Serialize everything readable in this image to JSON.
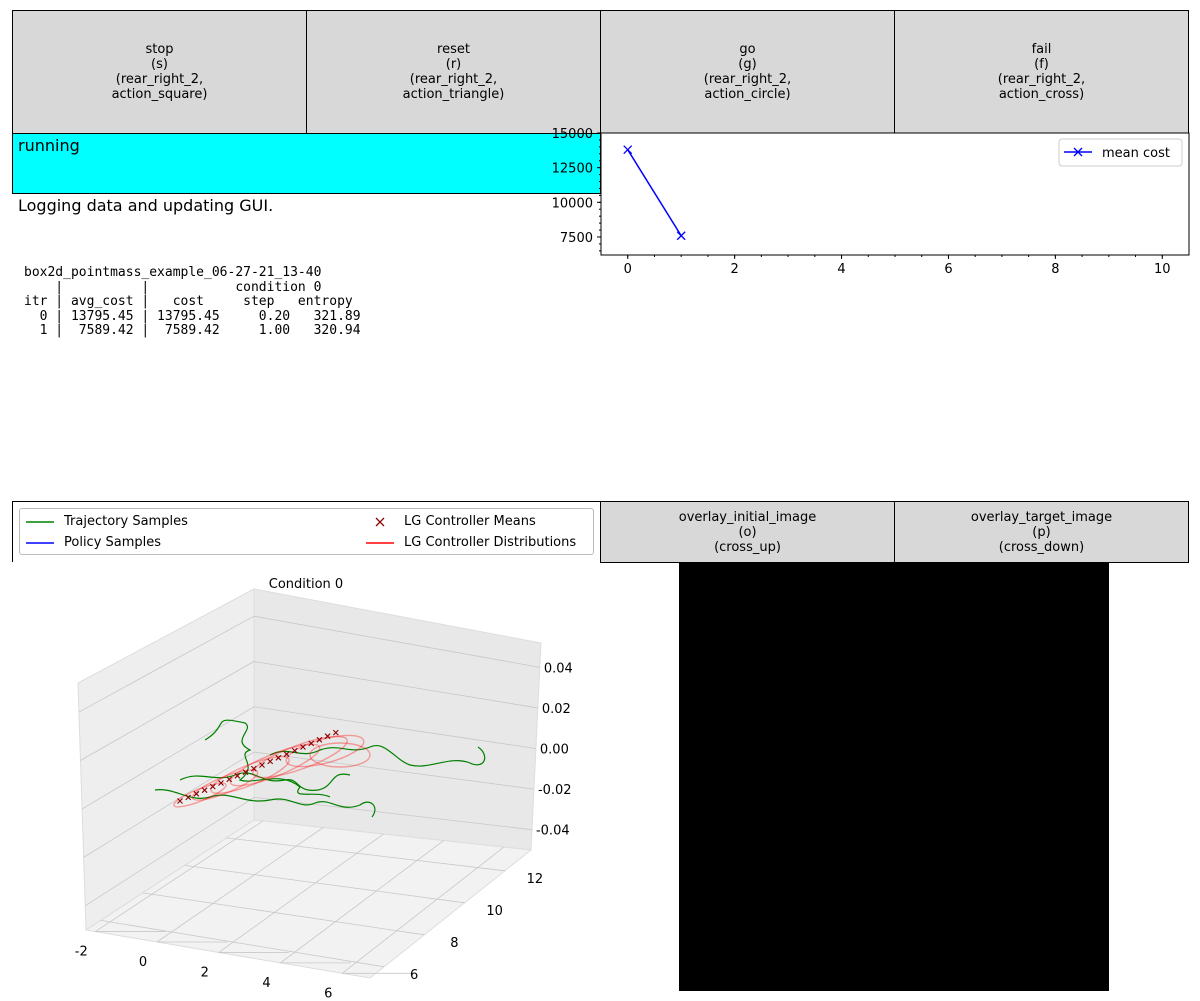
{
  "buttons": [
    {
      "label": "stop",
      "key": "(s)",
      "binding": "(rear_right_2,",
      "binding2": "action_square)"
    },
    {
      "label": "reset",
      "key": "(r)",
      "binding": "(rear_right_2,",
      "binding2": "action_triangle)"
    },
    {
      "label": "go",
      "key": "(g)",
      "binding": "(rear_right_2,",
      "binding2": "action_circle)"
    },
    {
      "label": "fail",
      "key": "(f)",
      "binding": "(rear_right_2,",
      "binding2": "action_cross)"
    }
  ],
  "overlay_buttons": [
    {
      "label": "overlay_initial_image",
      "key": "(o)",
      "binding": "(cross_up)"
    },
    {
      "label": "overlay_target_image",
      "key": "(p)",
      "binding": "(cross_down)"
    }
  ],
  "status": {
    "text": "running",
    "color": "#00ffff"
  },
  "message": "Logging data and updating GUI.",
  "log": {
    "experiment": "box2d_pointmass_example_06-27-21_13-40",
    "header1": "    |          |           condition 0",
    "header2": "itr | avg_cost |   cost     step   entropy",
    "rows": [
      "  0 | 13795.45 | 13795.45     0.20   321.89",
      "  1 |  7589.42 |  7589.42     1.00   320.94"
    ]
  },
  "chart_data": [
    {
      "type": "line",
      "x": [
        0,
        1
      ],
      "series": [
        {
          "name": "mean cost",
          "values": [
            13795.45,
            7589.42
          ],
          "color": "#0000ff",
          "marker": "x"
        }
      ],
      "xlim": [
        -0.5,
        10.5
      ],
      "ylim": [
        6200,
        15000
      ],
      "xticks": [
        0,
        2,
        4,
        6,
        8,
        10
      ],
      "yticks": [
        7500,
        10000,
        12500,
        15000
      ],
      "legend": "top-right"
    },
    {
      "type": "3d-line",
      "title": "Condition 0",
      "xticks": [
        -2,
        0,
        2,
        4,
        6
      ],
      "yticks": [
        6,
        8,
        10,
        12
      ],
      "zticks": [
        -0.04,
        -0.02,
        0.0,
        0.02,
        0.04
      ],
      "legend_entries": [
        {
          "label": "Trajectory Samples",
          "color": "#008000",
          "style": "line"
        },
        {
          "label": "Policy Samples",
          "color": "#0000ff",
          "style": "line"
        },
        {
          "label": "LG Controller Means",
          "color": "#8b0000",
          "style": "x"
        },
        {
          "label": "LG Controller Distributions",
          "color": "#ff0000",
          "style": "line"
        }
      ],
      "legend": "top"
    }
  ]
}
